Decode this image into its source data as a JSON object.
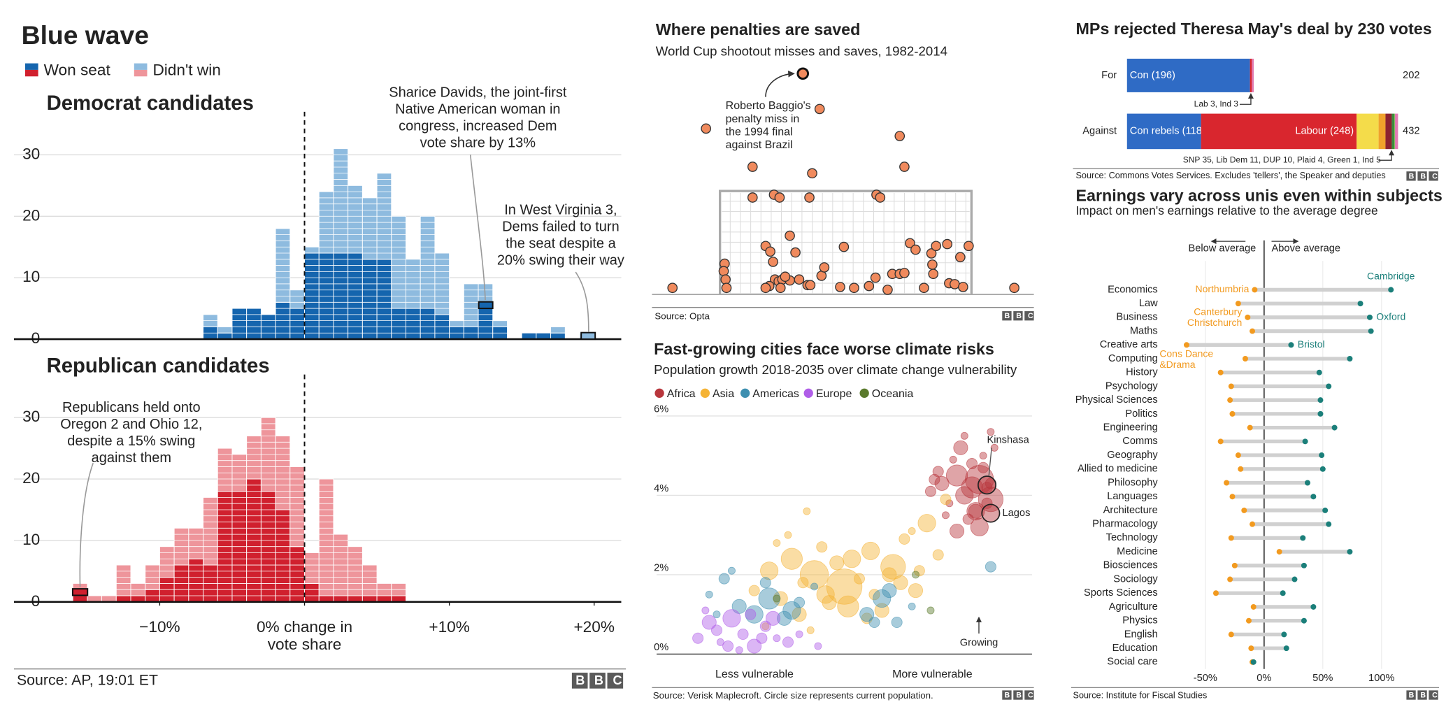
{
  "brand": "BBC",
  "chart_data": [
    {
      "type": "stacked-histogram",
      "title": "Blue wave",
      "legend": [
        "Won seat",
        "Didn't win"
      ],
      "xlim": [
        -20,
        22
      ],
      "xticks": [
        {
          "value": -10,
          "label": "−10%"
        },
        {
          "value": 0,
          "label": "0% change in\nvote share"
        },
        {
          "value": 10,
          "label": "+10%"
        },
        {
          "value": 20,
          "label": "+20%"
        }
      ],
      "ylim": [
        0,
        37
      ],
      "yticks": [
        0,
        10,
        20,
        30
      ],
      "source": "Source: AP, 19:01 ET",
      "panels": [
        {
          "title": "Democrat candidates",
          "colors": [
            "#1565ae",
            "#8ebbdf"
          ],
          "bins": [
            -7,
            -6,
            -5,
            -4,
            -3,
            -2,
            -1,
            0,
            1,
            2,
            3,
            4,
            5,
            6,
            7,
            8,
            9,
            10,
            11,
            12,
            13,
            14,
            15,
            16,
            17,
            18,
            19,
            20
          ],
          "won": [
            2,
            1,
            5,
            5,
            4,
            6,
            5,
            14,
            14,
            14,
            14,
            13,
            13,
            5,
            5,
            5,
            4,
            2,
            2,
            5,
            2,
            0,
            1,
            1,
            1,
            0,
            0
          ],
          "lost": [
            2,
            1,
            0,
            0,
            0,
            12,
            3,
            1,
            10,
            17,
            11,
            10,
            14,
            15,
            8,
            15,
            10,
            1,
            7,
            4,
            1,
            0,
            0,
            0,
            1,
            0,
            1
          ],
          "annotations": [
            {
              "lines": [
                "Sharice Davids, the joint-first",
                "Native American woman in",
                "congress, increased Dem",
                "vote share by 13%"
              ]
            },
            {
              "lines": [
                "In West Virginia 3,",
                "Dems failed to turn",
                "the seat despite a",
                "20% swing their way"
              ]
            }
          ]
        },
        {
          "title": "Republican candidates",
          "colors": [
            "#d0202e",
            "#ee959b"
          ],
          "bins": [
            -16,
            -15,
            -14,
            -13,
            -12,
            -11,
            -10,
            -9,
            -8,
            -7,
            -6,
            -5,
            -4,
            -3,
            -2,
            -1,
            0,
            1,
            2,
            3,
            4,
            5,
            6,
            7
          ],
          "won": [
            2,
            0,
            0,
            1,
            1,
            2,
            4,
            6,
            7,
            6,
            18,
            18,
            20,
            18,
            15,
            9,
            3,
            1,
            1,
            1,
            1,
            1,
            1
          ],
          "lost": [
            1,
            1,
            1,
            5,
            2,
            4,
            5,
            6,
            5,
            11,
            7,
            6,
            7,
            12,
            12,
            13,
            5,
            19,
            10,
            8,
            5,
            2,
            2
          ],
          "annotations": [
            {
              "lines": [
                "Republicans held onto",
                "Oregon 2 and Ohio 12,",
                "despite a 15% swing",
                "against them"
              ]
            }
          ]
        }
      ]
    },
    {
      "type": "scatter",
      "title": "Where penalties are saved",
      "subtitle": "World Cup shootout misses and saves, 1982-2014",
      "xlim": [
        0,
        410
      ],
      "ylim": [
        0,
        246
      ],
      "color": "#f08a5d",
      "x": [
        58,
        180,
        108,
        172,
        266,
        271,
        108,
        131,
        137,
        169,
        241,
        245,
        22,
        389,
        78,
        77,
        79,
        80,
        122,
        127,
        148,
        154,
        130,
        206,
        277,
        283,
        300,
        305,
        317,
        340,
        331,
        301,
        302,
        132,
        136,
        140,
        148,
        158,
        126,
        122,
        138,
        167,
        170,
        182,
        185,
        240,
        258,
        266,
        271,
        292,
        319,
        325,
        334,
        253,
        217,
        202,
        233,
        143
      ],
      "y": [
        178,
        199,
        137,
        130,
        170,
        137,
        104,
        107,
        104,
        104,
        107,
        104,
        7,
        7,
        33,
        25,
        16,
        7,
        52,
        46,
        63,
        45,
        35,
        51,
        55,
        48,
        44,
        52,
        54,
        52,
        40,
        32,
        22,
        16,
        14,
        16,
        15,
        16,
        9,
        7,
        7,
        10,
        10,
        20,
        29,
        18,
        22,
        22,
        23,
        7,
        12,
        11,
        8,
        5,
        7,
        8,
        9,
        19
      ],
      "highlight": {
        "x": 162,
        "y": 237,
        "label": [
          "Roberto Baggio's",
          "penalty miss in",
          "the 1994 final",
          "against Brazil"
        ]
      },
      "source": "Source: Opta"
    },
    {
      "type": "bubble",
      "title": "Fast-growing cities face worse climate risks",
      "subtitle": "Population growth 2018-2035 over climate change vulnerability",
      "xlim": [
        0,
        10
      ],
      "ylim": [
        0,
        6.2
      ],
      "yticks": [
        {
          "value": 0,
          "label": "0%"
        },
        {
          "value": 2,
          "label": "2%"
        },
        {
          "value": 4,
          "label": "4%"
        },
        {
          "value": 6,
          "label": "6%"
        }
      ],
      "x_labels": [
        "Less vulnerable",
        "More vulnerable"
      ],
      "series": [
        {
          "name": "Africa",
          "color": "#b8363c",
          "x": [
            7.3,
            7.6,
            7.8,
            8.0,
            8.2,
            8.4,
            8.5,
            8.6,
            8.7,
            8.8,
            8.9,
            8.1,
            7.9,
            8.3,
            8.6,
            8.9,
            7.5,
            7.7,
            8.0,
            8.4,
            8.7,
            8.2,
            7.4,
            8.9,
            8.5,
            9.0,
            8.8
          ],
          "y": [
            4.1,
            4.3,
            3.8,
            4.5,
            4.0,
            4.8,
            3.6,
            4.4,
            5.0,
            4.2,
            3.9,
            5.2,
            4.9,
            3.4,
            3.2,
            5.6,
            4.6,
            3.5,
            3.1,
            4.2,
            4.7,
            5.5,
            4.4,
            4.3,
            3.6,
            5.2,
            3.8
          ],
          "size": [
            3,
            4,
            2,
            6,
            5,
            3,
            4,
            8,
            2,
            3,
            7,
            4,
            2,
            3,
            5,
            2,
            3,
            2,
            4,
            6,
            3,
            2,
            3,
            3,
            5,
            2,
            3
          ]
        },
        {
          "name": "Asia",
          "color": "#f5b335",
          "x": [
            2.6,
            3.0,
            3.3,
            3.6,
            3.9,
            4.2,
            4.5,
            4.8,
            5.1,
            5.4,
            5.7,
            6.0,
            6.3,
            6.6,
            6.9,
            7.2,
            7.5,
            3.2,
            3.8,
            4.4,
            5.0,
            5.6,
            6.2,
            6.8,
            4.0,
            4.6,
            5.2,
            5.8,
            7.0,
            2.9,
            3.5,
            4.1,
            6.5,
            7.7
          ],
          "y": [
            1.6,
            2.1,
            1.4,
            2.4,
            1.8,
            2.0,
            1.5,
            2.3,
            1.2,
            1.9,
            2.6,
            1.1,
            2.2,
            2.9,
            1.6,
            3.3,
            2.5,
            2.8,
            1.0,
            2.7,
            1.7,
            0.9,
            2.0,
            3.1,
            3.6,
            1.3,
            2.4,
            1.5,
            2.1,
            0.7,
            3.0,
            0.6,
            1.8,
            3.9
          ],
          "size": [
            3,
            5,
            4,
            6,
            3,
            8,
            5,
            4,
            6,
            3,
            5,
            4,
            7,
            3,
            4,
            5,
            3,
            2,
            4,
            3,
            10,
            3,
            4,
            2,
            2,
            4,
            5,
            3,
            3,
            2,
            2,
            2,
            4,
            3
          ]
        },
        {
          "name": "Americas",
          "color": "#3d8fb0",
          "x": [
            1.4,
            1.8,
            2.2,
            2.6,
            3.0,
            3.4,
            3.8,
            4.2,
            5.6,
            6.0,
            6.4,
            6.8,
            2.0,
            2.9,
            3.6,
            5.8,
            6.2,
            1.6,
            8.9
          ],
          "y": [
            1.5,
            1.9,
            1.2,
            1.0,
            1.4,
            0.9,
            1.3,
            1.7,
            1.0,
            1.4,
            0.8,
            1.2,
            2.1,
            1.8,
            1.1,
            0.8,
            1.6,
            1.0,
            2.2
          ],
          "size": [
            2,
            3,
            4,
            5,
            6,
            4,
            3,
            2,
            4,
            5,
            3,
            2,
            2,
            3,
            5,
            3,
            4,
            2,
            3
          ]
        },
        {
          "name": "Europe",
          "color": "#b05ee8",
          "x": [
            1.1,
            1.4,
            1.7,
            2.0,
            2.3,
            2.6,
            2.9,
            3.2,
            3.5,
            1.3,
            1.9,
            2.5,
            3.1,
            3.8,
            4.3,
            1.6,
            2.2,
            2.8
          ],
          "y": [
            0.4,
            0.8,
            0.3,
            0.9,
            0.5,
            0.2,
            0.7,
            0.4,
            0.3,
            1.1,
            0.2,
            1.0,
            0.9,
            0.5,
            0.2,
            0.6,
            0.1,
            0.4
          ],
          "size": [
            3,
            4,
            2,
            5,
            3,
            4,
            3,
            2,
            3,
            2,
            3,
            3,
            4,
            2,
            2,
            3,
            2,
            3
          ]
        },
        {
          "name": "Oceania",
          "color": "#5a7a2c",
          "x": [
            3.2,
            6.9,
            7.3
          ],
          "y": [
            1.4,
            2.0,
            1.1
          ],
          "size": [
            2,
            2,
            2
          ]
        }
      ],
      "highlights": [
        {
          "name": "Kinshasa",
          "x": 8.8,
          "y": 4.26,
          "size": 5
        },
        {
          "name": "Lagos",
          "x": 8.9,
          "y": 3.55,
          "size": 5
        }
      ],
      "annotation": "Growing",
      "source": "Source: Verisk Maplecroft. Circle size represents current population."
    },
    {
      "type": "stacked-barh",
      "title": "MPs rejected Theresa May's deal by 230 votes",
      "xlim": [
        0,
        432
      ],
      "rows": [
        {
          "name": "For",
          "total": 202,
          "segments": [
            {
              "value": 196,
              "label": "Con (196)",
              "color": "#2f6bc5"
            },
            {
              "value": 3,
              "color": "#d9262e"
            },
            {
              "value": 3,
              "color": "#e17bb2"
            }
          ]
        },
        {
          "name": "Against",
          "total": 432,
          "segments": [
            {
              "value": 118,
              "label": "Con rebels (118)",
              "color": "#2f6bc5"
            },
            {
              "value": 248,
              "label": "Labour (248)",
              "color": "#d9262e"
            },
            {
              "value": 35,
              "color": "#f4dc4a"
            },
            {
              "value": 11,
              "color": "#f0a22b"
            },
            {
              "value": 10,
              "color": "#8c2230"
            },
            {
              "value": 4,
              "color": "#3d8b3d"
            },
            {
              "value": 1,
              "color": "#74c04c"
            },
            {
              "value": 5,
              "color": "#e17bb2"
            }
          ]
        }
      ],
      "annotations": [
        "Lab 3, Ind 3",
        "SNP 35, Lib Dem 11, DUP 10, Plaid 4, Green 1, Ind 5"
      ],
      "source": "Source: Commons Votes Services. Excludes 'tellers', the Speaker and deputies"
    },
    {
      "type": "dot",
      "title": "Earnings vary across unis even within subjects",
      "subtitle": "Impact on men's earnings relative to the average degree",
      "categories": [
        "Economics",
        "Law",
        "Business",
        "Maths",
        "Creative arts",
        "Computing",
        "History",
        "Psychology",
        "Physical Sciences",
        "Politics",
        "Engineering",
        "Comms",
        "Geography",
        "Allied to medicine",
        "Philosophy",
        "Languages",
        "Architecture",
        "Pharmacology",
        "Technology",
        "Medicine",
        "Biosciences",
        "Sociology",
        "Sports Sciences",
        "Agriculture",
        "Physics",
        "English",
        "Education",
        "Social care"
      ],
      "series": [
        {
          "color": "#f29a1f",
          "values": [
            -8,
            -22,
            -14,
            -10,
            -66,
            -16,
            -37,
            -28,
            -29,
            -27,
            -12,
            -37,
            -22,
            -20,
            -32,
            -27,
            -17,
            -10,
            -28,
            13,
            -25,
            -29,
            -41,
            -9,
            -13,
            -28,
            -11,
            -10
          ],
          "point_labels": [
            "Northumbria",
            null,
            "Canterbury\nChristchurch",
            null,
            "Cons Dance\n&Drama",
            null,
            null,
            null,
            null,
            null,
            null,
            null,
            null,
            null,
            null,
            null,
            null,
            null,
            null,
            null,
            null,
            null,
            null,
            null,
            null,
            null,
            null,
            null
          ]
        },
        {
          "color": "#1b7f7a",
          "values": [
            108,
            82,
            90,
            91,
            23,
            73,
            47,
            55,
            48,
            48,
            60,
            35,
            49,
            50,
            37,
            42,
            52,
            55,
            33,
            73,
            34,
            26,
            16,
            42,
            34,
            17,
            19,
            -9
          ],
          "point_labels": [
            "Cambridge",
            null,
            "Oxford",
            null,
            "Bristol",
            null,
            null,
            null,
            null,
            null,
            null,
            null,
            null,
            null,
            null,
            null,
            null,
            null,
            null,
            null,
            null,
            null,
            null,
            null,
            null,
            null,
            null,
            null
          ]
        }
      ],
      "xlim": [
        -85,
        145
      ],
      "xticks": [
        {
          "value": -50,
          "label": "-50%"
        },
        {
          "value": 0,
          "label": "0%"
        },
        {
          "value": 50,
          "label": "50%"
        },
        {
          "value": 100,
          "label": "100%"
        }
      ],
      "direction_labels": [
        "Below average",
        "Above average"
      ],
      "source": "Source: Institute for Fiscal Studies"
    }
  ]
}
